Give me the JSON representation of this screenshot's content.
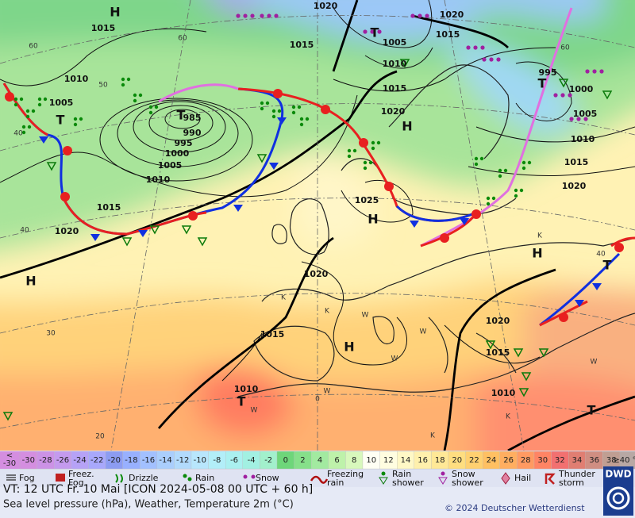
{
  "map": {
    "pressure_labels": [
      1020,
      1015,
      1015,
      1010,
      1005,
      985,
      990,
      995,
      1000,
      1005,
      1010,
      1015,
      1020,
      1025,
      1020,
      1015,
      1010,
      1020,
      1015,
      1005,
      1010,
      1015,
      1020,
      995,
      1000,
      1005,
      1010,
      1015,
      1020,
      1020,
      1015,
      1010
    ],
    "centers": [
      "H",
      "T",
      "T",
      "H",
      "T",
      "H",
      "H",
      "H",
      "H",
      "T",
      "T",
      "T",
      "T"
    ],
    "graticule_labels": [
      60,
      50,
      40,
      40,
      30,
      20,
      0,
      60,
      40,
      60
    ],
    "station_marks": [
      "K",
      "K",
      "W",
      "W",
      "W",
      "W",
      "W",
      "K",
      "K",
      "W",
      "K"
    ]
  },
  "temperature_scale": {
    "below": {
      "symbol": "<",
      "value": -30
    },
    "steps": [
      {
        "value": -30,
        "color": "#d48ee0"
      },
      {
        "value": -28,
        "color": "#cc92e6"
      },
      {
        "value": -26,
        "color": "#c49aee"
      },
      {
        "value": -24,
        "color": "#b6a2f6"
      },
      {
        "value": -22,
        "color": "#a8a8fc"
      },
      {
        "value": -20,
        "color": "#8c9cf2"
      },
      {
        "value": -18,
        "color": "#98b0ff"
      },
      {
        "value": -16,
        "color": "#a2c0ff"
      },
      {
        "value": -14,
        "color": "#aacefc"
      },
      {
        "value": -12,
        "color": "#b2dafc"
      },
      {
        "value": -10,
        "color": "#b8e6fc"
      },
      {
        "value": -8,
        "color": "#b2eef8"
      },
      {
        "value": -6,
        "color": "#aaf0f0"
      },
      {
        "value": -4,
        "color": "#a2f0e2"
      },
      {
        "value": -2,
        "color": "#a2f0cc"
      },
      {
        "value": 0,
        "color": "#6ed67a"
      },
      {
        "value": 2,
        "color": "#86e08a"
      },
      {
        "value": 4,
        "color": "#a2eaa0"
      },
      {
        "value": 6,
        "color": "#bef2aa"
      },
      {
        "value": 8,
        "color": "#d8f8bc"
      },
      {
        "value": 10,
        "color": "#fffff4"
      },
      {
        "value": 12,
        "color": "#fffde0"
      },
      {
        "value": 14,
        "color": "#fff8c6"
      },
      {
        "value": 16,
        "color": "#fff0ac"
      },
      {
        "value": 18,
        "color": "#ffe896"
      },
      {
        "value": 20,
        "color": "#ffde80"
      },
      {
        "value": 22,
        "color": "#ffd070"
      },
      {
        "value": 24,
        "color": "#ffc062"
      },
      {
        "value": 26,
        "color": "#ffae60"
      },
      {
        "value": 28,
        "color": "#ff9a62"
      },
      {
        "value": 30,
        "color": "#ff8464"
      },
      {
        "value": 32,
        "color": "#f27070"
      },
      {
        "value": 34,
        "color": "#e07e72"
      },
      {
        "value": 36,
        "color": "#d08e82"
      },
      {
        "value": 38,
        "color": "#c09e92"
      }
    ],
    "above": "≥40 °C"
  },
  "weather_legend": [
    "Fog",
    "Freez. Fog",
    "Drizzle",
    "Rain",
    "Snow",
    "Freezing rain",
    "Rain shower",
    "Snow shower",
    "Hail",
    "Thunder storm"
  ],
  "footer": {
    "valid_time": "VT: 12 UTC Fr.  10 Mai [ICON 2024-05-08  00 UTC + 60 h]",
    "description": "Sea level pressure (hPa), Weather, Temperature 2m (°C)",
    "copyright": "© 2024 Deutscher Wetterdienst",
    "logo": "DWD"
  }
}
